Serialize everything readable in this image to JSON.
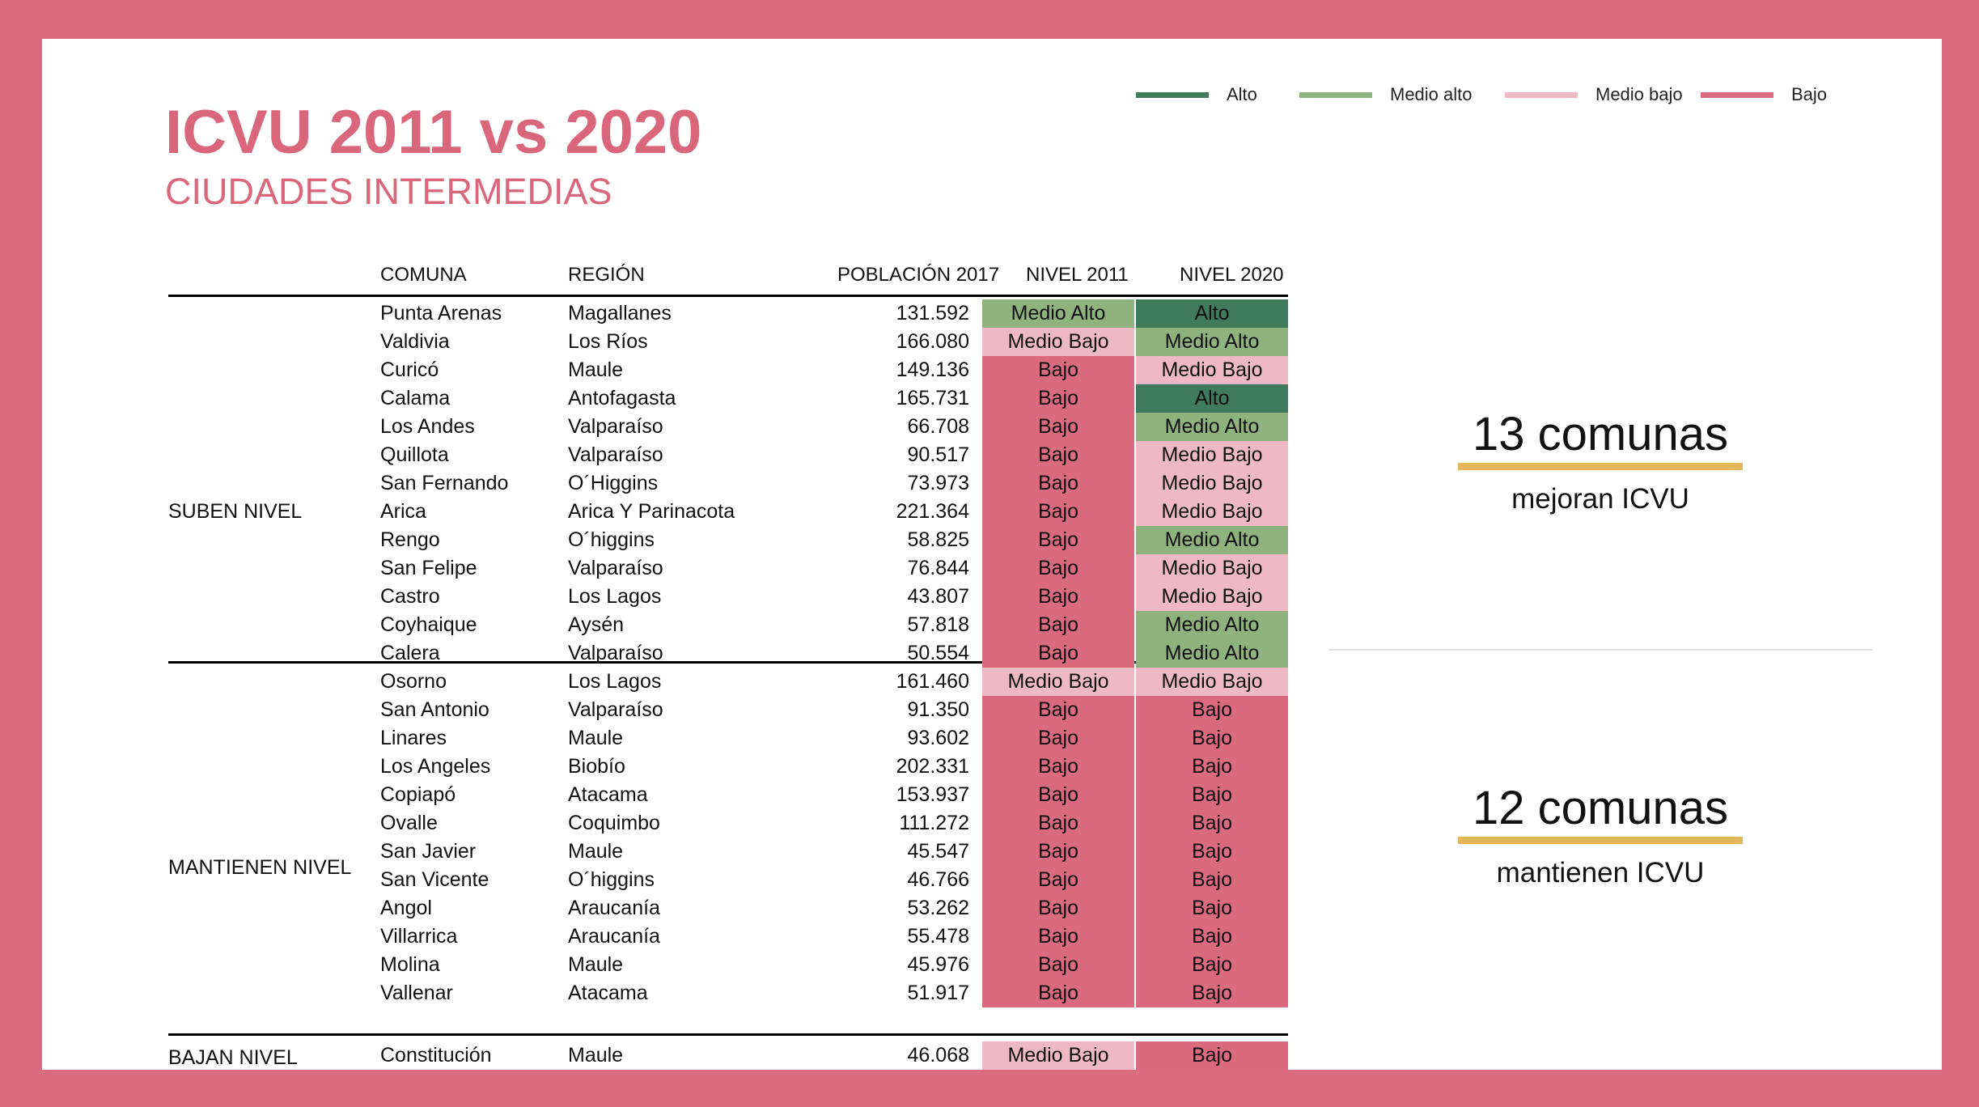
{
  "title": "ICVU 2011 vs 2020",
  "subtitle": "CIUDADES INTERMEDIAS",
  "legend": [
    {
      "label": "Alto",
      "color": "#3f7a5c"
    },
    {
      "label": "Medio alto",
      "color": "#8fb27f"
    },
    {
      "label": "Medio bajo",
      "color": "#eeb9c4"
    },
    {
      "label": "Bajo",
      "color": "#da6a7e"
    }
  ],
  "table": {
    "headers": [
      "COMUNA",
      "REGIÓN",
      "POBLACIÓN 2017",
      "NIVEL 2011",
      "NIVEL 2020"
    ],
    "groups": [
      {
        "label": "SUBEN NIVEL"
      },
      {
        "label": "MANTIENEN NIVEL"
      },
      {
        "label": "BAJAN NIVEL"
      }
    ],
    "rows": [
      [
        "Punta Arenas",
        "Magallanes",
        "131.592",
        "Medio Alto",
        "Alto"
      ],
      [
        "Valdivia",
        "Los Ríos",
        "166.080",
        "Medio Bajo",
        "Medio Alto"
      ],
      [
        "Curicó",
        "Maule",
        "149.136",
        "Bajo",
        "Medio Bajo"
      ],
      [
        "Calama",
        "Antofagasta",
        "165.731",
        "Bajo",
        "Alto"
      ],
      [
        "Los Andes",
        "Valparaíso",
        "66.708",
        "Bajo",
        "Medio Alto"
      ],
      [
        "Quillota",
        "Valparaíso",
        "90.517",
        "Bajo",
        "Medio Bajo"
      ],
      [
        "San Fernando",
        "O´Higgins",
        "73.973",
        "Bajo",
        "Medio Bajo"
      ],
      [
        "Arica",
        "Arica Y Parinacota",
        "221.364",
        "Bajo",
        "Medio Bajo"
      ],
      [
        "Rengo",
        "O´higgins",
        "58.825",
        "Bajo",
        "Medio Alto"
      ],
      [
        "San Felipe",
        "Valparaíso",
        "76.844",
        "Bajo",
        "Medio Bajo"
      ],
      [
        "Castro",
        "Los Lagos",
        "43.807",
        "Bajo",
        "Medio Bajo"
      ],
      [
        "Coyhaique",
        "Aysén",
        "57.818",
        "Bajo",
        "Medio Alto"
      ],
      [
        "Calera",
        "Valparaíso",
        "50.554",
        "Bajo",
        "Medio Alto"
      ],
      [
        "Osorno",
        "Los Lagos",
        "161.460",
        "Medio Bajo",
        "Medio Bajo"
      ],
      [
        "San Antonio",
        "Valparaíso",
        "91.350",
        "Bajo",
        "Bajo"
      ],
      [
        "Linares",
        "Maule",
        "93.602",
        "Bajo",
        "Bajo"
      ],
      [
        "Los Angeles",
        "Biobío",
        "202.331",
        "Bajo",
        "Bajo"
      ],
      [
        "Copiapó",
        "Atacama",
        "153.937",
        "Bajo",
        "Bajo"
      ],
      [
        "Ovalle",
        "Coquimbo",
        "111.272",
        "Bajo",
        "Bajo"
      ],
      [
        "San Javier",
        "Maule",
        "45.547",
        "Bajo",
        "Bajo"
      ],
      [
        "San Vicente",
        "O´higgins",
        "46.766",
        "Bajo",
        "Bajo"
      ],
      [
        "Angol",
        "Araucanía",
        "53.262",
        "Bajo",
        "Bajo"
      ],
      [
        "Villarrica",
        "Araucanía",
        "55.478",
        "Bajo",
        "Bajo"
      ],
      [
        "Molina",
        "Maule",
        "45.976",
        "Bajo",
        "Bajo"
      ],
      [
        "Vallenar",
        "Atacama",
        "51.917",
        "Bajo",
        "Bajo"
      ],
      [
        "Constitución",
        "Maule",
        "46.068",
        "Medio Bajo",
        "Bajo"
      ]
    ]
  },
  "stats": [
    {
      "number": "13 comunas",
      "caption": "mejoran ICVU"
    },
    {
      "number": "12 comunas",
      "caption": "mantienen ICVU"
    }
  ]
}
